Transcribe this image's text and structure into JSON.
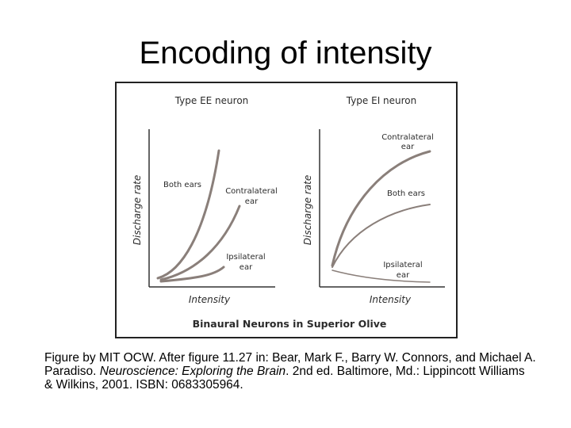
{
  "slide": {
    "title": "Encoding of intensity"
  },
  "figure": {
    "footer_title": "Binaural Neurons in Superior Olive",
    "panels": [
      {
        "title": "Type EE neuron",
        "ylabel": "Discharge rate",
        "xlabel": "Intensity",
        "curves": [
          {
            "label": "Both ears"
          },
          {
            "label_line1": "Contralateral",
            "label_line2": "ear"
          },
          {
            "label_line1": "Ipsilateral",
            "label_line2": "ear"
          }
        ]
      },
      {
        "title": "Type EI neuron",
        "ylabel": "Discharge rate",
        "xlabel": "Intensity",
        "curves": [
          {
            "label_line1": "Contralateral",
            "label_line2": "ear"
          },
          {
            "label": "Both ears"
          },
          {
            "label_line1": "Ipsilateral",
            "label_line2": "ear"
          }
        ]
      }
    ],
    "colors": {
      "curve": "#8a7f7a",
      "axis": "#333333",
      "text": "#2b2b2b"
    }
  },
  "caption": {
    "part1": "Figure by MIT OCW. After figure 11.27 in: Bear, Mark F., Barry W. Connors, and Michael A. Paradiso. ",
    "book_title": "Neuroscience: Exploring the Brain",
    "part2": ". 2nd ed. Baltimore, Md.: Lippincott Williams & Wilkins, 2001. ISBN: 0683305964."
  }
}
